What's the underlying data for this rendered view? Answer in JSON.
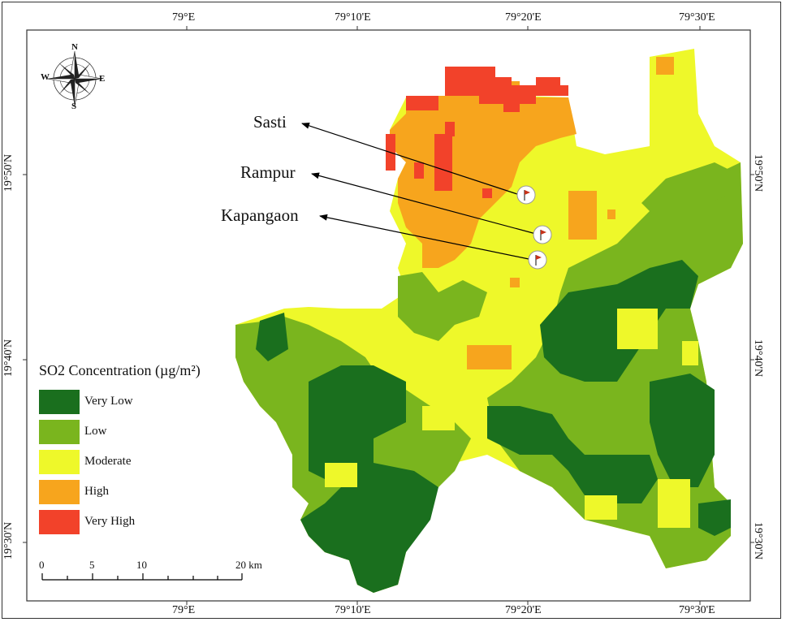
{
  "graticule": {
    "top": [
      "79°E",
      "79°10'E",
      "79°20'E",
      "79°30'E"
    ],
    "bottom": [
      "79°E",
      "79°10'E",
      "79°20'E",
      "79°30'E"
    ],
    "left": [
      "19°50'N",
      "19°40'N",
      "19°30'N"
    ],
    "right": [
      "19°50'N",
      "19°40'N",
      "19°30'N"
    ]
  },
  "compass": {
    "n": "N",
    "s": "S",
    "e": "E",
    "w": "W"
  },
  "villages": [
    {
      "name": "Sasti"
    },
    {
      "name": "Rampur"
    },
    {
      "name": "Kapangaon"
    }
  ],
  "legend": {
    "title": "SO2 Concentration (µg/m²)",
    "classes": [
      {
        "label": "Very Low",
        "color": "#1a6f1e"
      },
      {
        "label": "Low",
        "color": "#7ab51e"
      },
      {
        "label": "Moderate",
        "color": "#eef82a"
      },
      {
        "label": "High",
        "color": "#f7a51d"
      },
      {
        "label": "Very High",
        "color": "#f2422a"
      }
    ]
  },
  "scale_bar": {
    "labels": [
      "0",
      "5",
      "10",
      "20 km"
    ]
  },
  "colors": {
    "flag": "#c63219",
    "frame": "#333333"
  }
}
